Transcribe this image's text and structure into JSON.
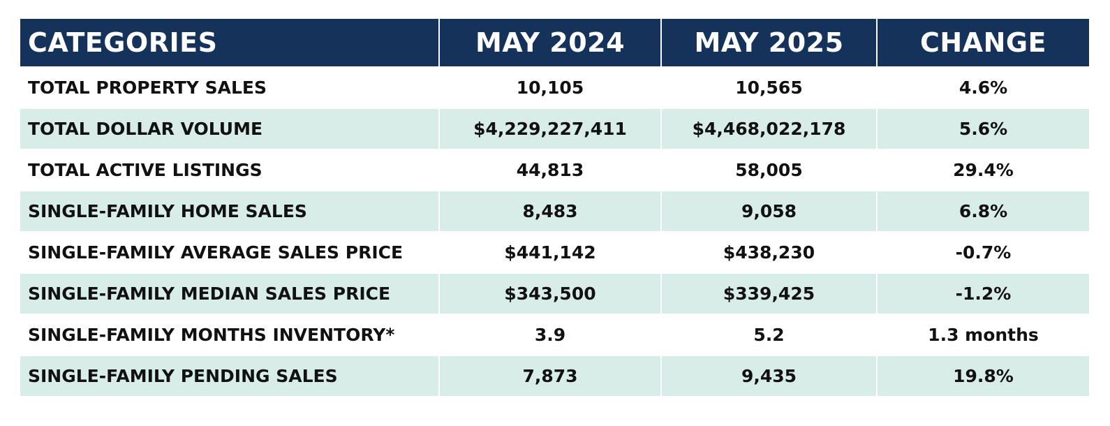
{
  "table": {
    "headers": [
      "CATEGORIES",
      "MAY 2024",
      "MAY 2025",
      "CHANGE"
    ],
    "rows": [
      [
        "TOTAL PROPERTY SALES",
        "10,105",
        "10,565",
        "4.6%"
      ],
      [
        "TOTAL DOLLAR VOLUME",
        "$4,229,227,411",
        "$4,468,022,178",
        "5.6%"
      ],
      [
        "TOTAL ACTIVE LISTINGS",
        "44,813",
        "58,005",
        "29.4%"
      ],
      [
        "SINGLE-FAMILY HOME SALES",
        "8,483",
        "9,058",
        "6.8%"
      ],
      [
        "SINGLE-FAMILY AVERAGE SALES PRICE",
        "$441,142",
        "$438,230",
        "-0.7%"
      ],
      [
        "SINGLE-FAMILY MEDIAN SALES PRICE",
        "$343,500",
        "$339,425",
        "-1.2%"
      ],
      [
        "SINGLE-FAMILY MONTHS INVENTORY*",
        "3.9",
        "5.2",
        "1.3 months"
      ],
      [
        "SINGLE-FAMILY PENDING SALES",
        "7,873",
        "9,435",
        "19.8%"
      ]
    ]
  },
  "colors": {
    "header_bg": "#15325a",
    "header_text": "#ffffff",
    "alt_row_bg": "#d8ede8",
    "row_bg": "#ffffff",
    "body_text": "#111111"
  }
}
